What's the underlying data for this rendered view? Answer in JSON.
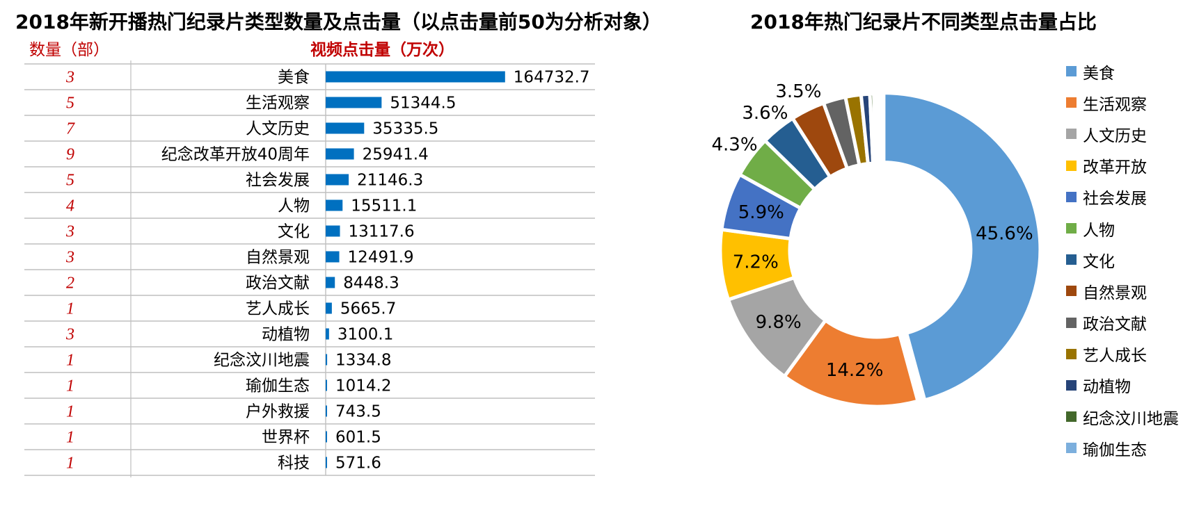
{
  "left": {
    "title": "2018年新开播热门纪录片类型数量及点击量（以点击量前50为分析对象）",
    "count_header": "数量（部）",
    "clicks_header": "视频点击量（万次）"
  },
  "right": {
    "title": "2018年热门纪录片不同类型点击量占比"
  },
  "chart_data": [
    {
      "type": "bar",
      "orientation": "horizontal",
      "title": "2018年新开播热门纪录片类型数量及点击量（以点击量前50为分析对象）",
      "xlabel": "视频点击量（万次）",
      "categories": [
        "美食",
        "生活观察",
        "人文历史",
        "纪念改革开放40周年",
        "社会发展",
        "人物",
        "文化",
        "自然景观",
        "政治文献",
        "艺人成长",
        "动植物",
        "纪念汶川地震",
        "瑜伽生态",
        "户外救援",
        "世界杯",
        "科技"
      ],
      "counts": [
        "3",
        "5",
        "7",
        "9",
        "5",
        "4",
        "3",
        "3",
        "2",
        "1",
        "3",
        "1",
        "1",
        "1",
        "1",
        "1"
      ],
      "values": [
        164732.7,
        51344.5,
        35335.5,
        25941.4,
        21146.3,
        15511.1,
        13117.6,
        12491.9,
        8448.3,
        5665.7,
        3100.1,
        1334.8,
        1014.2,
        743.5,
        601.5,
        571.6
      ],
      "value_labels": [
        "164732.7",
        "51344.5",
        "35335.5",
        "25941.4",
        "21146.3",
        "15511.1",
        "13117.6",
        "12491.9",
        "8448.3",
        "5665.7",
        "3100.1",
        "1334.8",
        "1014.2",
        "743.5",
        "601.5",
        "571.6"
      ],
      "bar_color": "#0070c0"
    },
    {
      "type": "pie",
      "variant": "donut",
      "title": "2018年热门纪录片不同类型点击量占比",
      "legend_position": "right",
      "labels": [
        "美食",
        "生活观察",
        "人文历史",
        "改革开放",
        "社会发展",
        "人物",
        "文化",
        "自然景观",
        "政治文献",
        "艺人成长",
        "动植物",
        "纪念汶川地震",
        "瑜伽生态"
      ],
      "values": [
        45.6,
        14.2,
        9.8,
        7.2,
        5.9,
        4.3,
        3.6,
        3.5,
        2.3,
        1.6,
        0.9,
        0.4,
        0.3
      ],
      "value_labels": [
        "45.6%",
        "14.2%",
        "9.8%",
        "7.2%",
        "5.9%",
        "4.3%",
        "3.6%",
        "3.5%",
        "",
        "",
        "",
        "",
        ""
      ],
      "colors": [
        "#5b9bd5",
        "#ed7d31",
        "#a5a5a5",
        "#ffc000",
        "#4472c4",
        "#70ad47",
        "#255e91",
        "#9e480e",
        "#636363",
        "#997300",
        "#264478",
        "#43682b",
        "#7cafdd"
      ]
    }
  ]
}
